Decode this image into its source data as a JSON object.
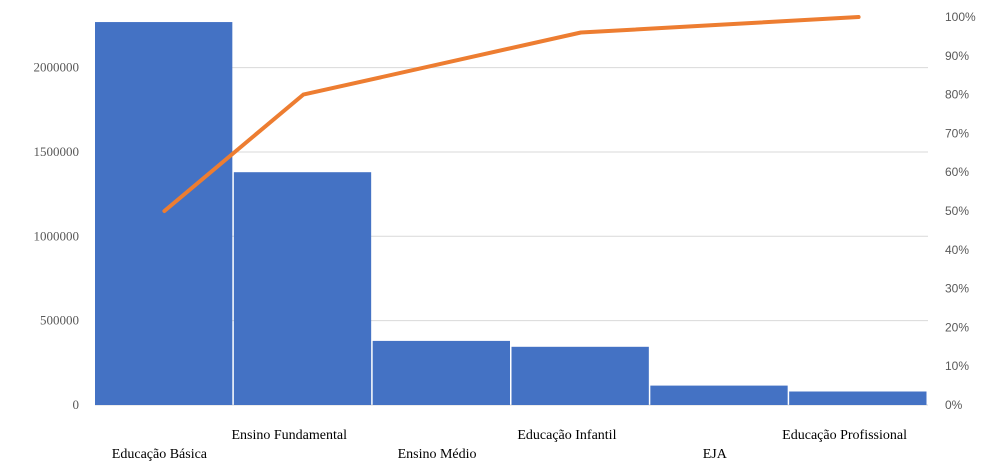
{
  "chart_data": {
    "type": "bar",
    "categories": [
      "Educação Básica",
      "Ensino Fundamental",
      "Ensino Médio",
      "Educação Infantil",
      "EJA",
      "Educação Profissional"
    ],
    "series": [
      {
        "type": "bar",
        "values": [
          2270000,
          1380000,
          380000,
          345000,
          115000,
          80000
        ]
      },
      {
        "type": "line",
        "values": [
          0.5,
          0.8,
          0.88,
          0.96,
          0.98,
          1.0
        ]
      }
    ],
    "y_left": {
      "ylim": [
        0,
        2300000
      ],
      "ticks": [
        0,
        500000,
        1000000,
        1500000,
        2000000
      ],
      "tick_labels": [
        "0",
        "500000",
        "1000000",
        "1500000",
        "2000000"
      ]
    },
    "y_right": {
      "ylim": [
        0,
        1.0
      ],
      "ticks": [
        0,
        0.1,
        0.2,
        0.3,
        0.4,
        0.5,
        0.6,
        0.7,
        0.8,
        0.9,
        1.0
      ],
      "tick_labels": [
        "0%",
        "10%",
        "20%",
        "30%",
        "40%",
        "50%",
        "60%",
        "70%",
        "80%",
        "90%",
        "100%"
      ]
    },
    "grid": true,
    "legend": "none",
    "colors": {
      "bar": "#4472C4",
      "line": "#ED7D31",
      "grid": "#D9D9D9"
    }
  }
}
